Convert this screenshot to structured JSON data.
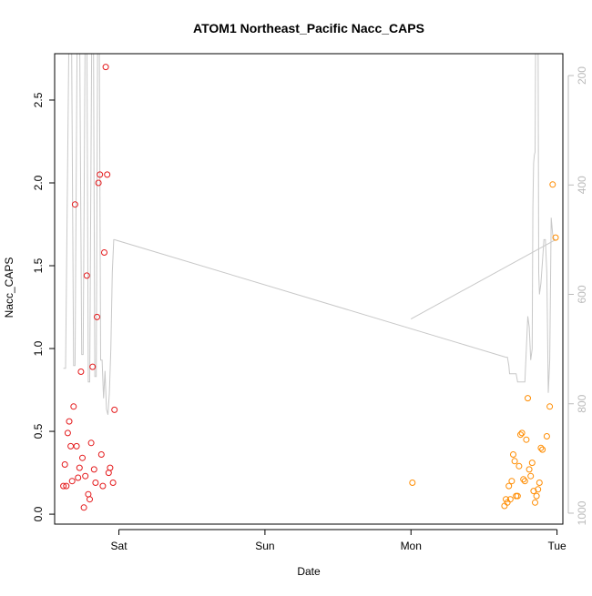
{
  "chart_data": {
    "type": "scatter",
    "title": "ATOM1 Northeast_Pacific Nacc_CAPS",
    "xlabel": "Date",
    "ylabel": "Nacc_CAPS",
    "x_ticks": [
      {
        "label": "Sat",
        "value": 1.0
      },
      {
        "label": "Sun",
        "value": 2.0
      },
      {
        "label": "Mon",
        "value": 3.0
      },
      {
        "label": "Tue",
        "value": 4.0
      }
    ],
    "xlim": [
      0.56,
      4.04
    ],
    "ylim": [
      -0.06,
      2.78
    ],
    "y_ticks": [
      0.0,
      0.5,
      1.0,
      1.5,
      2.0,
      2.5
    ],
    "y2_ticks": [
      200,
      400,
      600,
      800,
      1000
    ],
    "y2lim": [
      1020,
      160
    ],
    "y2_inverted": true,
    "grid": false,
    "colors": {
      "series_a": "#e41a1c",
      "series_b": "#ff8c00",
      "altitude": "#c8c8c8",
      "axis": "#000000",
      "axis2": "#bbbbbb"
    },
    "series": [
      {
        "color": "#e41a1c",
        "points": [
          [
            0.62,
            0.17
          ],
          [
            0.63,
            0.3
          ],
          [
            0.64,
            0.17
          ],
          [
            0.65,
            0.49
          ],
          [
            0.66,
            0.56
          ],
          [
            0.67,
            0.41
          ],
          [
            0.68,
            0.2
          ],
          [
            0.69,
            0.65
          ],
          [
            0.7,
            1.87
          ],
          [
            0.71,
            0.41
          ],
          [
            0.72,
            0.22
          ],
          [
            0.73,
            0.28
          ],
          [
            0.74,
            0.86
          ],
          [
            0.75,
            0.34
          ],
          [
            0.76,
            0.04
          ],
          [
            0.77,
            0.23
          ],
          [
            0.78,
            1.44
          ],
          [
            0.79,
            0.12
          ],
          [
            0.8,
            0.09
          ],
          [
            0.81,
            0.43
          ],
          [
            0.82,
            0.89
          ],
          [
            0.83,
            0.27
          ],
          [
            0.84,
            0.19
          ],
          [
            0.85,
            1.19
          ],
          [
            0.86,
            2.0
          ],
          [
            0.87,
            2.05
          ],
          [
            0.88,
            0.36
          ],
          [
            0.89,
            0.17
          ],
          [
            0.9,
            1.58
          ],
          [
            0.91,
            2.7
          ],
          [
            0.92,
            2.05
          ],
          [
            0.93,
            0.25
          ],
          [
            0.94,
            0.28
          ],
          [
            0.96,
            0.19
          ],
          [
            0.97,
            0.63
          ]
        ]
      },
      {
        "color": "#ff8c00",
        "points": [
          [
            3.01,
            0.19
          ],
          [
            3.64,
            0.05
          ],
          [
            3.65,
            0.09
          ],
          [
            3.66,
            0.07
          ],
          [
            3.67,
            0.17
          ],
          [
            3.68,
            0.09
          ],
          [
            3.69,
            0.2
          ],
          [
            3.7,
            0.36
          ],
          [
            3.71,
            0.32
          ],
          [
            3.72,
            0.11
          ],
          [
            3.73,
            0.11
          ],
          [
            3.74,
            0.29
          ],
          [
            3.75,
            0.48
          ],
          [
            3.76,
            0.49
          ],
          [
            3.77,
            0.21
          ],
          [
            3.78,
            0.2
          ],
          [
            3.79,
            0.45
          ],
          [
            3.8,
            0.7
          ],
          [
            3.81,
            0.27
          ],
          [
            3.82,
            0.23
          ],
          [
            3.83,
            0.31
          ],
          [
            3.84,
            0.14
          ],
          [
            3.85,
            0.07
          ],
          [
            3.86,
            0.11
          ],
          [
            3.87,
            0.15
          ],
          [
            3.88,
            0.19
          ],
          [
            3.89,
            0.4
          ],
          [
            3.9,
            0.39
          ],
          [
            3.93,
            0.47
          ],
          [
            3.95,
            0.65
          ],
          [
            3.97,
            1.99
          ],
          [
            3.99,
            1.67
          ]
        ]
      }
    ],
    "altitude_line": {
      "color": "#c8c8c8",
      "points": [
        [
          0.62,
          735
        ],
        [
          0.635,
          735
        ],
        [
          0.66,
          75
        ],
        [
          0.675,
          75
        ],
        [
          0.69,
          730
        ],
        [
          0.7,
          730
        ],
        [
          0.715,
          75
        ],
        [
          0.73,
          75
        ],
        [
          0.745,
          710
        ],
        [
          0.755,
          710
        ],
        [
          0.77,
          75
        ],
        [
          0.78,
          75
        ],
        [
          0.79,
          760
        ],
        [
          0.8,
          760
        ],
        [
          0.815,
          75
        ],
        [
          0.825,
          75
        ],
        [
          0.835,
          750
        ],
        [
          0.845,
          750
        ],
        [
          0.855,
          75
        ],
        [
          0.865,
          75
        ],
        [
          0.875,
          720
        ],
        [
          0.885,
          720
        ],
        [
          0.895,
          790
        ],
        [
          0.905,
          740
        ],
        [
          0.915,
          810
        ],
        [
          0.925,
          820
        ],
        [
          0.935,
          780
        ],
        [
          0.945,
          700
        ],
        [
          0.955,
          560
        ],
        [
          0.965,
          500
        ],
        [
          0.97,
          500
        ],
        [
          3.65,
          715
        ],
        [
          3.66,
          715
        ],
        [
          3.67,
          730
        ],
        [
          3.675,
          745
        ],
        [
          3.7,
          745
        ],
        [
          3.72,
          745
        ],
        [
          3.73,
          760
        ],
        [
          3.74,
          760
        ],
        [
          3.75,
          760
        ],
        [
          3.76,
          760
        ],
        [
          3.78,
          760
        ],
        [
          3.79,
          700
        ],
        [
          3.8,
          640
        ],
        [
          3.81,
          660
        ],
        [
          3.82,
          720
        ],
        [
          3.83,
          700
        ],
        [
          3.835,
          440
        ],
        [
          3.84,
          360
        ],
        [
          3.845,
          345
        ],
        [
          3.85,
          340
        ],
        [
          3.855,
          75
        ],
        [
          3.87,
          75
        ],
        [
          3.875,
          560
        ],
        [
          3.88,
          600
        ],
        [
          3.89,
          580
        ],
        [
          3.9,
          540
        ],
        [
          3.91,
          500
        ],
        [
          3.92,
          500
        ],
        [
          3.93,
          560
        ],
        [
          3.94,
          780
        ],
        [
          3.95,
          720
        ],
        [
          3.96,
          460
        ],
        [
          3.97,
          490
        ],
        [
          3.98,
          500
        ],
        [
          3.99,
          500
        ],
        [
          3.0,
          645
        ],
        [
          3.99,
          500
        ]
      ],
      "connector": [
        [
          0.97,
          500
        ],
        [
          3.65,
          715
        ]
      ]
    }
  }
}
